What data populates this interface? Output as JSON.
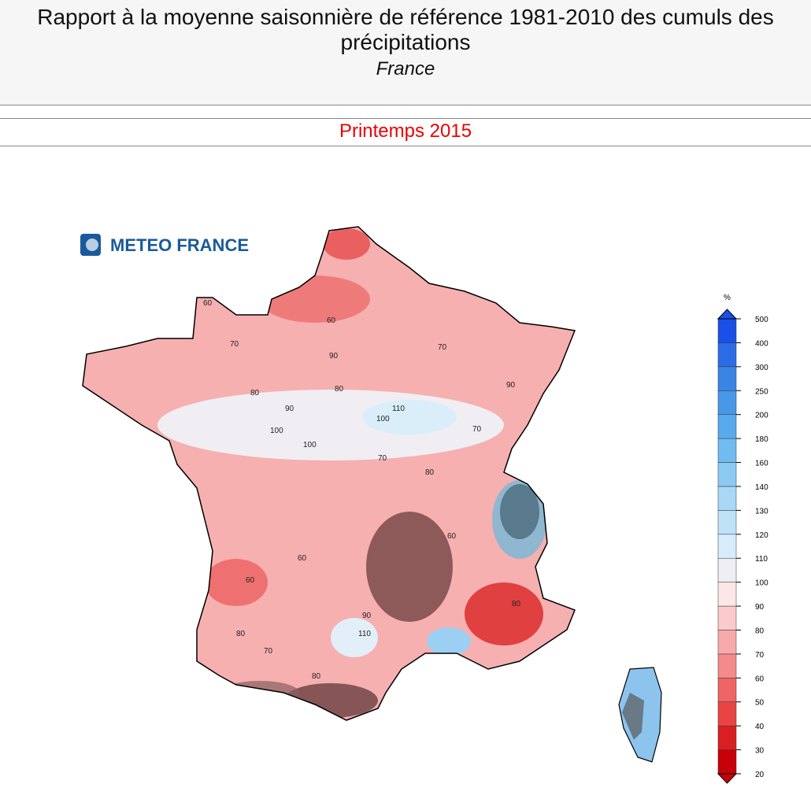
{
  "header": {
    "title": "Rapport à la moyenne saisonnière de référence 1981-2010 des cumuls des précipitations",
    "subtitle": "France",
    "period": "Printemps 2015"
  },
  "logo": {
    "text": "METEO FRANCE"
  },
  "map": {
    "contour_labels": [
      "60",
      "70",
      "60",
      "80",
      "90",
      "70",
      "80",
      "100",
      "90",
      "100",
      "110",
      "100",
      "70",
      "80",
      "70",
      "60",
      "90",
      "60",
      "80",
      "70",
      "80",
      "110",
      "90",
      "80",
      "60"
    ]
  },
  "legend": {
    "unit": "%",
    "ticks": [
      20,
      30,
      40,
      50,
      60,
      70,
      80,
      90,
      100,
      110,
      120,
      130,
      140,
      160,
      180,
      200,
      250,
      300,
      400,
      500
    ],
    "colors": [
      "#c8000a",
      "#d92020",
      "#e84444",
      "#ef6464",
      "#f48a8a",
      "#f8aaaa",
      "#fbcaca",
      "#fde6e6",
      "#eeeef4",
      "#d6ecfa",
      "#c0e2f8",
      "#a8d8f6",
      "#8ccaf4",
      "#70bcf0",
      "#58aaec",
      "#4898e8",
      "#3a84e6",
      "#2c6ce6",
      "#1a4fe8"
    ]
  }
}
